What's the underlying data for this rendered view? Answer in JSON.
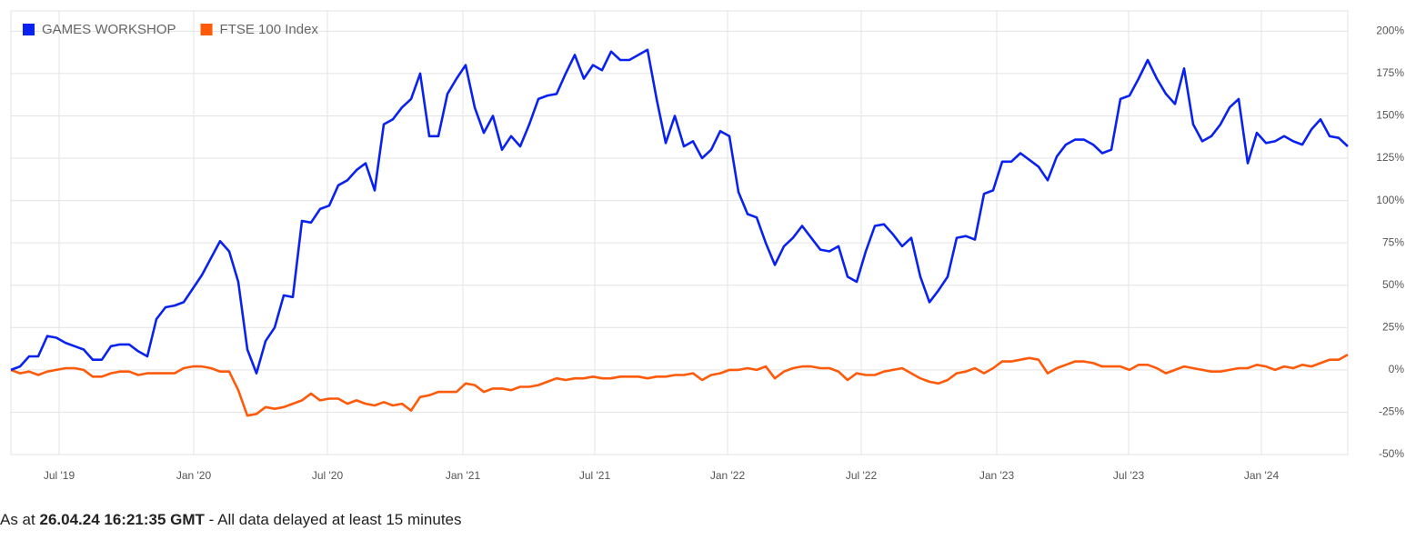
{
  "chart_data": {
    "type": "line",
    "series": [
      {
        "name": "GAMES WORKSHOP",
        "color": "#0a22f0",
        "values": [
          0,
          2,
          8,
          8,
          20,
          19,
          16,
          14,
          12,
          6,
          6,
          14,
          15,
          15,
          11,
          8,
          30,
          37,
          38,
          40,
          48,
          56,
          66,
          76,
          70,
          52,
          12,
          -2,
          17,
          25,
          44,
          43,
          88,
          87,
          95,
          97,
          109,
          112,
          118,
          122,
          106,
          145,
          148,
          155,
          160,
          175,
          138,
          138,
          163,
          172,
          180,
          155,
          140,
          150,
          130,
          138,
          132,
          145,
          160,
          162,
          163,
          175,
          186,
          172,
          180,
          177,
          188,
          183,
          183,
          186,
          189,
          160,
          134,
          150,
          132,
          135,
          125,
          130,
          141,
          138,
          105,
          92,
          90,
          75,
          62,
          73,
          78,
          85,
          78,
          71,
          70,
          73,
          55,
          52,
          70,
          85,
          86,
          80,
          73,
          78,
          55,
          40,
          47,
          55,
          78,
          79,
          77,
          104,
          106,
          123,
          123,
          128,
          124,
          120,
          112,
          126,
          133,
          136,
          136,
          133,
          128,
          130,
          160,
          162,
          172,
          183,
          172,
          163,
          157,
          178,
          145,
          135,
          138,
          145,
          155,
          160,
          122,
          140,
          134,
          135,
          138,
          135,
          133,
          142,
          148,
          138,
          137,
          132
        ]
      },
      {
        "name": "FTSE 100 Index",
        "color": "#ff5a0a",
        "values": [
          0,
          -2,
          -1,
          -3,
          -1,
          0,
          1,
          1,
          0,
          -4,
          -4,
          -2,
          -1,
          -1,
          -3,
          -2,
          -2,
          -2,
          -2,
          1,
          2,
          2,
          1,
          -1,
          -1,
          -12,
          -27,
          -26,
          -22,
          -23,
          -22,
          -20,
          -18,
          -14,
          -18,
          -17,
          -17,
          -20,
          -18,
          -20,
          -21,
          -19,
          -21,
          -20,
          -24,
          -16,
          -15,
          -13,
          -13,
          -13,
          -8,
          -9,
          -13,
          -11,
          -11,
          -12,
          -10,
          -10,
          -9,
          -7,
          -5,
          -6,
          -5,
          -5,
          -4,
          -5,
          -5,
          -4,
          -4,
          -4,
          -5,
          -4,
          -4,
          -3,
          -3,
          -2,
          -6,
          -3,
          -2,
          0,
          0,
          1,
          0,
          2,
          -5,
          -1,
          1,
          2,
          2,
          1,
          1,
          -1,
          -6,
          -2,
          -3,
          -3,
          -1,
          0,
          1,
          -2,
          -5,
          -7,
          -8,
          -6,
          -2,
          -1,
          1,
          -2,
          1,
          5,
          5,
          6,
          7,
          6,
          -2,
          1,
          3,
          5,
          5,
          4,
          2,
          2,
          2,
          0,
          3,
          3,
          1,
          -2,
          0,
          2,
          1,
          0,
          -1,
          -1,
          0,
          1,
          1,
          3,
          2,
          0,
          2,
          1,
          3,
          2,
          4,
          6,
          6,
          9
        ]
      }
    ],
    "xlim": [
      0,
      147
    ],
    "xticks": [
      {
        "value": 5.3,
        "label": "Jul '19"
      },
      {
        "value": 20.1,
        "label": "Jan '20"
      },
      {
        "value": 34.8,
        "label": "Jul '20"
      },
      {
        "value": 49.7,
        "label": "Jan '21"
      },
      {
        "value": 64.2,
        "label": "Jul '21"
      },
      {
        "value": 78.8,
        "label": "Jan '22"
      },
      {
        "value": 93.5,
        "label": "Jul '22"
      },
      {
        "value": 108.4,
        "label": "Jan '23"
      },
      {
        "value": 122.9,
        "label": "Jul '23"
      },
      {
        "value": 137.5,
        "label": "Jan '24"
      }
    ],
    "ylim": [
      -50,
      212
    ],
    "yticks": [
      {
        "value": -50,
        "label": "-50%"
      },
      {
        "value": -25,
        "label": "-25%"
      },
      {
        "value": 0,
        "label": "0%"
      },
      {
        "value": 25,
        "label": "25%"
      },
      {
        "value": 50,
        "label": "50%"
      },
      {
        "value": 75,
        "label": "75%"
      },
      {
        "value": 100,
        "label": "100%"
      },
      {
        "value": 125,
        "label": "125%"
      },
      {
        "value": 150,
        "label": "150%"
      },
      {
        "value": 175,
        "label": "175%"
      },
      {
        "value": 200,
        "label": "200%"
      }
    ],
    "grid": true,
    "legend": "top-left"
  },
  "footer": {
    "prefix": "As at",
    "timestamp": "26.04.24 16:21:35 GMT",
    "suffix": "- All data delayed at least 15 minutes"
  }
}
